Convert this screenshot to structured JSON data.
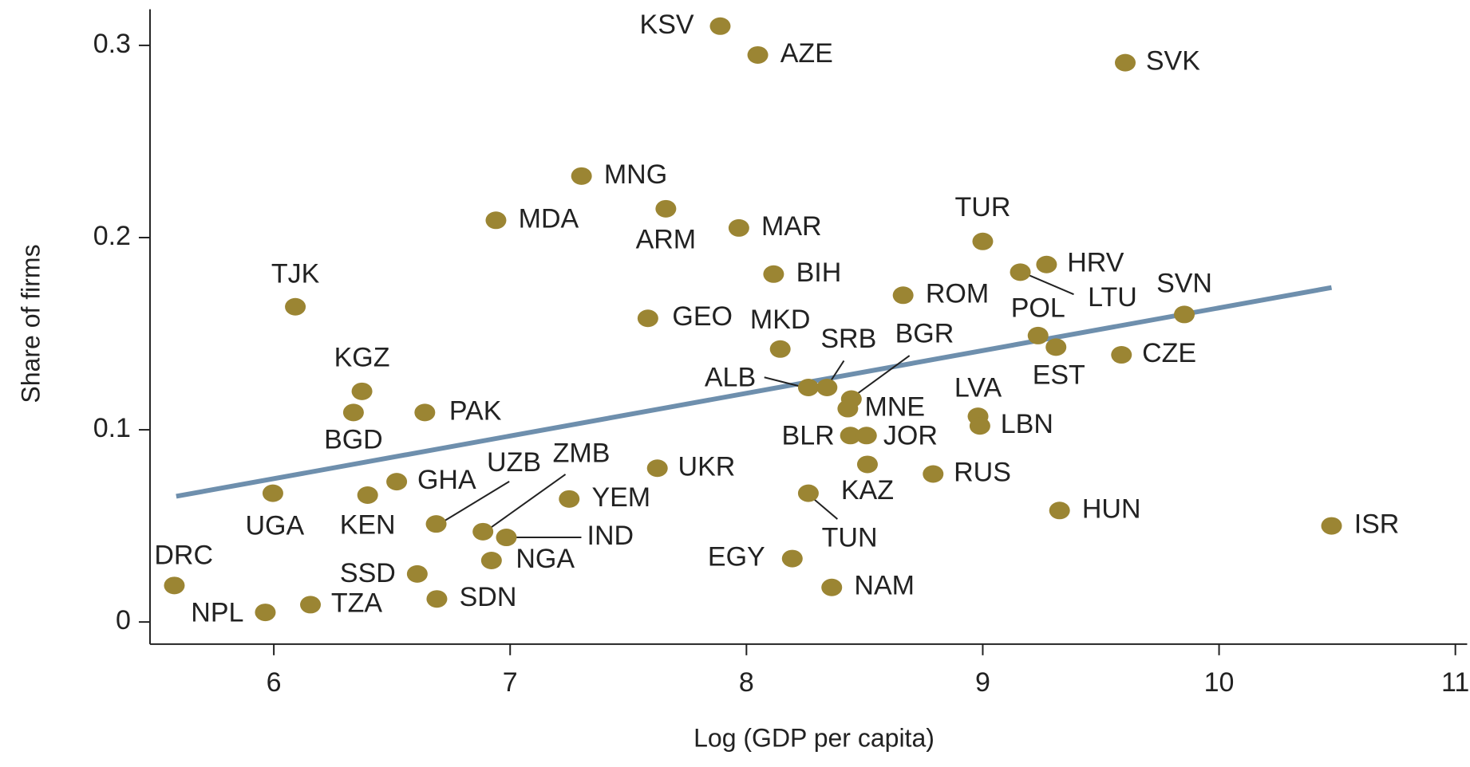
{
  "chart_data": {
    "type": "scatter",
    "x_label": "Log (GDP per capita)",
    "y_label": "Share of firms",
    "labels": [
      "KSV",
      "AZE",
      "SVK",
      "MNG",
      "MDA",
      "ARM",
      "MAR",
      "TUR",
      "BIH",
      "HRV",
      "LTU",
      "ROM",
      "TJK",
      "SVN",
      "GEO",
      "MKD",
      "POL",
      "EST",
      "CZE",
      "KGZ",
      "ALB",
      "SRB",
      "BGR",
      "MNE",
      "BGD",
      "PAK",
      "LVA",
      "LBN",
      "BLR",
      "JOR",
      "UKR",
      "KAZ",
      "RUS",
      "GHA",
      "UGA",
      "KEN",
      "TUN",
      "YEM",
      "HUN",
      "UZB",
      "ZMB",
      "ISR",
      "IND",
      "EGY",
      "NGA",
      "SSD",
      "DRC",
      "NAM",
      "SDN",
      "TZA",
      "NPL"
    ],
    "x": [
      7.889,
      8.048,
      9.603,
      7.302,
      6.94,
      7.659,
      7.968,
      9.0,
      8.115,
      9.27,
      9.159,
      8.663,
      6.091,
      9.853,
      7.583,
      8.143,
      9.234,
      9.31,
      9.587,
      6.373,
      8.262,
      8.341,
      8.444,
      8.429,
      6.337,
      6.639,
      8.98,
      8.988,
      8.44,
      8.508,
      7.623,
      8.512,
      8.79,
      6.52,
      5.996,
      6.397,
      8.262,
      7.25,
      9.325,
      6.687,
      6.885,
      10.476,
      6.984,
      8.194,
      6.921,
      6.607,
      5.579,
      8.361,
      6.69,
      6.155,
      5.964
    ],
    "y": [
      0.31,
      0.295,
      0.291,
      0.232,
      0.209,
      0.215,
      0.205,
      0.198,
      0.181,
      0.186,
      0.182,
      0.17,
      0.164,
      0.16,
      0.158,
      0.142,
      0.149,
      0.143,
      0.139,
      0.12,
      0.122,
      0.122,
      0.116,
      0.111,
      0.109,
      0.109,
      0.107,
      0.102,
      0.097,
      0.097,
      0.08,
      0.082,
      0.077,
      0.073,
      0.067,
      0.066,
      0.067,
      0.064,
      0.058,
      0.051,
      0.047,
      0.05,
      0.044,
      0.033,
      0.032,
      0.025,
      0.019,
      0.018,
      0.012,
      0.009,
      0.005
    ],
    "color": "#9b8533",
    "trendline": {
      "x": [
        5.587,
        10.476
      ],
      "y": [
        0.0654,
        0.174
      ],
      "color": "#6e8fad"
    },
    "xlim": [
      5.476,
      11.05
    ],
    "ylim": [
      -0.0115,
      0.3188
    ],
    "xticks": [
      6,
      7,
      8,
      9,
      10,
      11
    ],
    "yticks": [
      0,
      0.1,
      0.2,
      0.3
    ]
  }
}
